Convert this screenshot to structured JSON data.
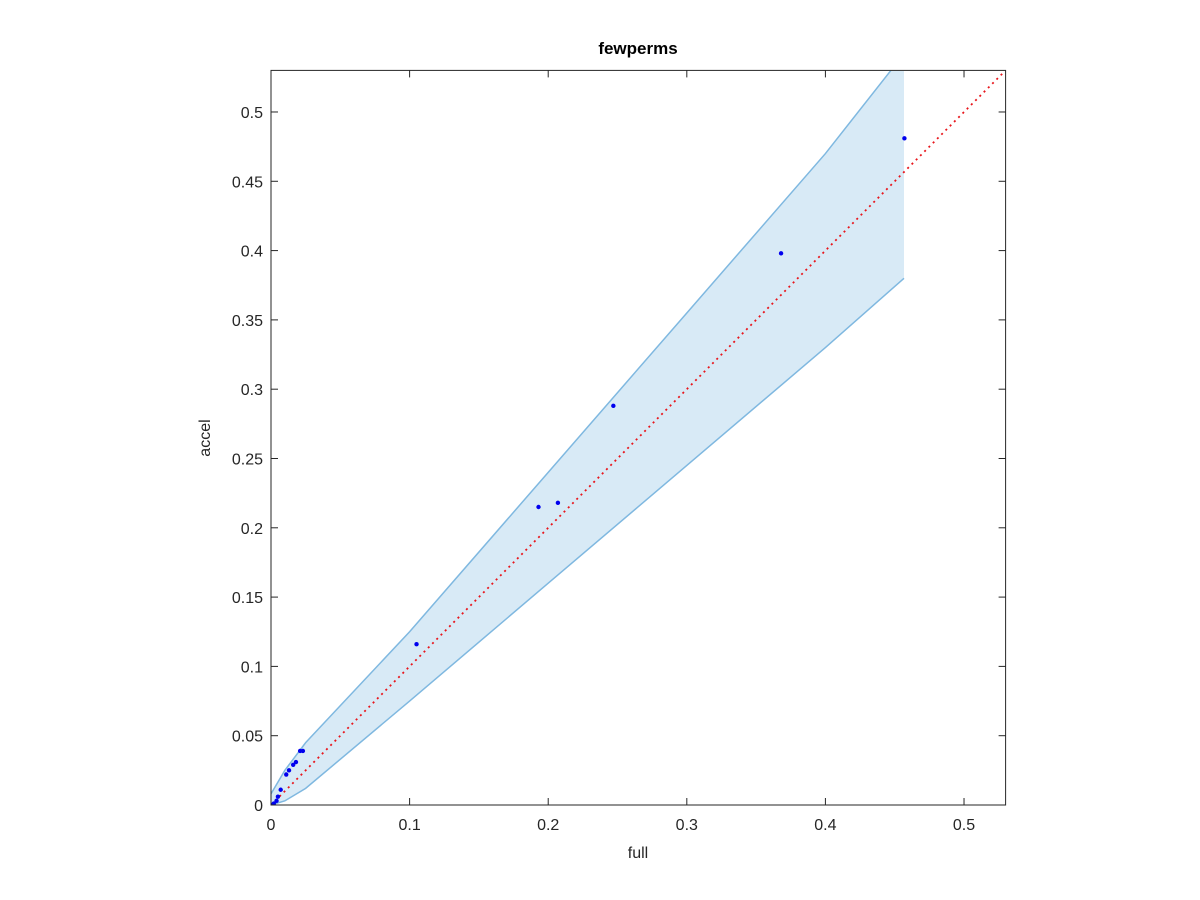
{
  "chart_data": {
    "type": "scatter",
    "title": "fewperms",
    "xlabel": "full",
    "ylabel": "accel",
    "xlim": [
      0,
      0.53
    ],
    "ylim": [
      0,
      0.53
    ],
    "xticks": [
      0,
      0.1,
      0.2,
      0.3,
      0.4,
      0.5
    ],
    "yticks": [
      0,
      0.05,
      0.1,
      0.15,
      0.2,
      0.25,
      0.3,
      0.35,
      0.4,
      0.45,
      0.5
    ],
    "band": {
      "color": "#7fb8e0",
      "x": [
        0,
        0.01,
        0.025,
        0.1,
        0.2,
        0.3,
        0.4,
        0.4567
      ],
      "upper": [
        0.008,
        0.025,
        0.045,
        0.125,
        0.24,
        0.355,
        0.47,
        0.542
      ],
      "lower": [
        0,
        0.003,
        0.012,
        0.075,
        0.16,
        0.245,
        0.33,
        0.38
      ]
    },
    "reference_line": {
      "color": "#e8161c",
      "x": [
        0,
        0.53
      ],
      "y": [
        0,
        0.53
      ]
    },
    "points": {
      "color": "#0000ee",
      "x": [
        0.457,
        0.368,
        0.247,
        0.207,
        0.193,
        0.105,
        0.023,
        0.021,
        0.018,
        0.016,
        0.013,
        0.011,
        0.007,
        0.005,
        0.004,
        0.002,
        0.001,
        0
      ],
      "y": [
        0.481,
        0.398,
        0.288,
        0.218,
        0.215,
        0.116,
        0.039,
        0.039,
        0.031,
        0.029,
        0.025,
        0.022,
        0.011,
        0.006,
        0.003,
        0.001,
        0,
        0
      ]
    }
  }
}
